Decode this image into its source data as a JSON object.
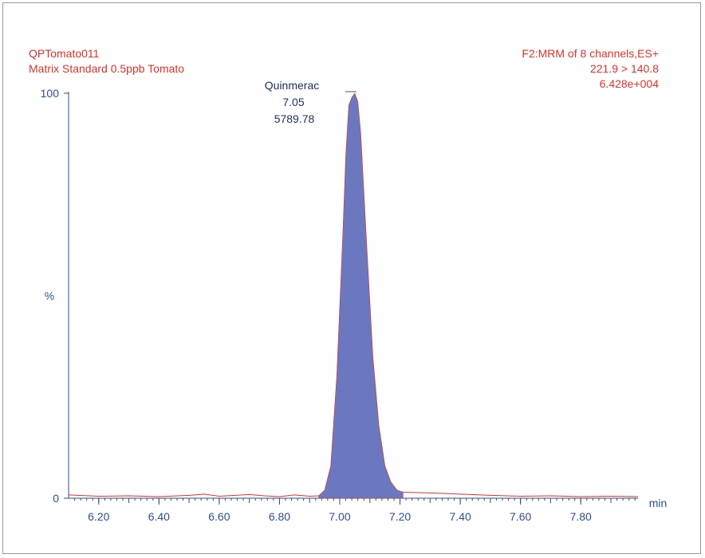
{
  "header": {
    "sample_name": "QPTomato011",
    "sample_description": "Matrix Standard 0.5ppb Tomato",
    "function_line": "F2:MRM of 8 channels,ES+",
    "transition": "221.9 > 140.8",
    "intensity": "6.428e+004"
  },
  "colors": {
    "header_text": "#d8322b",
    "axis_text": "#2d4f8a",
    "peak_fill": "#6b78bf",
    "trace": "#d8322b",
    "axis": "#2d4f8a"
  },
  "chart_data": {
    "type": "area",
    "title": "",
    "xlabel": "min",
    "ylabel": "%",
    "xlim": [
      6.1,
      7.99
    ],
    "ylim": [
      0,
      100
    ],
    "x_ticks": [
      "6.20",
      "6.40",
      "6.60",
      "6.80",
      "7.00",
      "7.20",
      "7.40",
      "7.60",
      "7.80"
    ],
    "y_ticks": [
      "0",
      "100"
    ],
    "peak_label": {
      "compound": "Quinmerac",
      "retention_time": "7.05",
      "area": "5789.78"
    },
    "baseline": {
      "x": [
        6.1,
        6.2,
        6.3,
        6.4,
        6.5,
        6.55,
        6.6,
        6.7,
        6.75,
        6.8,
        6.85,
        6.9,
        6.93
      ],
      "y": [
        0.8,
        0.5,
        0.6,
        0.4,
        0.7,
        1.0,
        0.5,
        0.9,
        0.6,
        0.4,
        0.8,
        0.5,
        0.6
      ]
    },
    "peak": {
      "x": [
        6.93,
        6.95,
        6.97,
        6.99,
        7.01,
        7.02,
        7.03,
        7.04,
        7.05,
        7.06,
        7.07,
        7.09,
        7.11,
        7.13,
        7.15,
        7.17,
        7.19,
        7.21
      ],
      "y": [
        0.6,
        2,
        8,
        30,
        65,
        85,
        97,
        99,
        100,
        98,
        90,
        62,
        35,
        18,
        8,
        4,
        2,
        1.5
      ]
    },
    "tail": {
      "x": [
        7.21,
        7.3,
        7.4,
        7.5,
        7.6,
        7.7,
        7.8,
        7.9,
        7.99
      ],
      "y": [
        1.5,
        1.3,
        1.0,
        0.7,
        0.5,
        0.6,
        0.4,
        0.5,
        0.4
      ]
    }
  }
}
